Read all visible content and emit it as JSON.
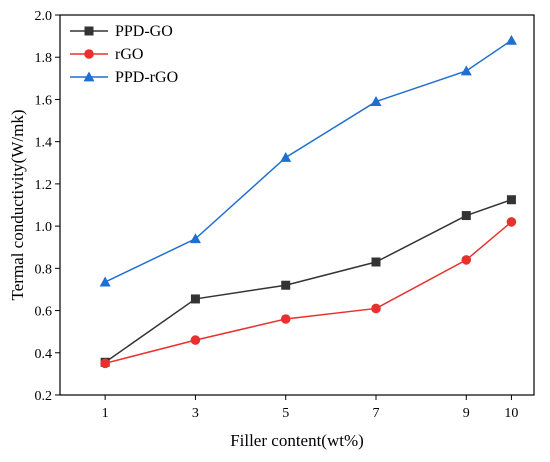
{
  "chart_data": {
    "type": "line",
    "xlabel": "Filler content(wt%)",
    "ylabel": "Termal conductivity(W/mk)",
    "x": [
      1,
      3,
      5,
      7,
      9,
      10
    ],
    "xticks": [
      1,
      3,
      5,
      7,
      9,
      10
    ],
    "xlim": [
      0,
      10.5
    ],
    "ylim": [
      0.2,
      2.0
    ],
    "yticks": [
      0.2,
      0.4,
      0.6,
      0.8,
      1.0,
      1.2,
      1.4,
      1.6,
      1.8,
      2.0
    ],
    "ytick_labels": [
      "0.2",
      "0.4",
      "0.6",
      "0.8",
      "1.0",
      "1.2",
      "1.4",
      "1.6",
      "1.8",
      "2.0"
    ],
    "grid": false,
    "legend_position": "top-left",
    "series": [
      {
        "name": "PPD-GO",
        "color": "#333333",
        "marker": "square",
        "values": [
          0.355,
          0.655,
          0.72,
          0.83,
          1.05,
          1.125
        ]
      },
      {
        "name": "rGO",
        "color": "#e8312f",
        "marker": "circle",
        "values": [
          0.35,
          0.46,
          0.56,
          0.61,
          0.84,
          1.02
        ]
      },
      {
        "name": "PPD-rGO",
        "color": "#1f6fd1",
        "marker": "triangle",
        "values": [
          0.735,
          0.94,
          1.325,
          1.59,
          1.735,
          1.88
        ]
      }
    ]
  }
}
